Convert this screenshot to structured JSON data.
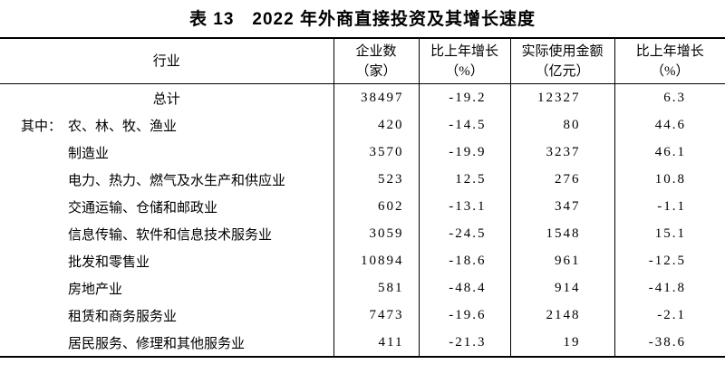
{
  "title": {
    "text": "表 13　2022 年外商直接投资及其增长速度"
  },
  "table": {
    "header": {
      "col1": {
        "name": "行业",
        "unit": ""
      },
      "col2": {
        "name": "企业数",
        "unit": "（家）"
      },
      "col3": {
        "name": "比上年增长",
        "unit": "（%）"
      },
      "col4": {
        "name": "实际使用金额",
        "unit": "（亿元）"
      },
      "col5": {
        "name": "比上年增长",
        "unit": "（%）"
      }
    },
    "rows": [
      {
        "prefix": "",
        "industry": "总计",
        "enterprises": "38497",
        "enterprises_growth": "-19.2",
        "amount": "12327",
        "amount_growth": "6.3"
      },
      {
        "prefix": "其中：",
        "industry": "农、林、牧、渔业",
        "enterprises": "420",
        "enterprises_growth": "-14.5",
        "amount": "80",
        "amount_growth": "44.6"
      },
      {
        "prefix": "",
        "industry": "制造业",
        "enterprises": "3570",
        "enterprises_growth": "-19.9",
        "amount": "3237",
        "amount_growth": "46.1"
      },
      {
        "prefix": "",
        "industry": "电力、热力、燃气及水生产和供应业",
        "enterprises": "523",
        "enterprises_growth": "12.5",
        "amount": "276",
        "amount_growth": "10.8"
      },
      {
        "prefix": "",
        "industry": "交通运输、仓储和邮政业",
        "enterprises": "602",
        "enterprises_growth": "-13.1",
        "amount": "347",
        "amount_growth": "-1.1"
      },
      {
        "prefix": "",
        "industry": "信息传输、软件和信息技术服务业",
        "enterprises": "3059",
        "enterprises_growth": "-24.5",
        "amount": "1548",
        "amount_growth": "15.1"
      },
      {
        "prefix": "",
        "industry": "批发和零售业",
        "enterprises": "10894",
        "enterprises_growth": "-18.6",
        "amount": "961",
        "amount_growth": "-12.5"
      },
      {
        "prefix": "",
        "industry": "房地产业",
        "enterprises": "581",
        "enterprises_growth": "-48.4",
        "amount": "914",
        "amount_growth": "-41.8"
      },
      {
        "prefix": "",
        "industry": "租赁和商务服务业",
        "enterprises": "7473",
        "enterprises_growth": "-19.6",
        "amount": "2148",
        "amount_growth": "-2.1"
      },
      {
        "prefix": "",
        "industry": "居民服务、修理和其他服务业",
        "enterprises": "411",
        "enterprises_growth": "-21.3",
        "amount": "19",
        "amount_growth": "-38.6"
      }
    ]
  }
}
